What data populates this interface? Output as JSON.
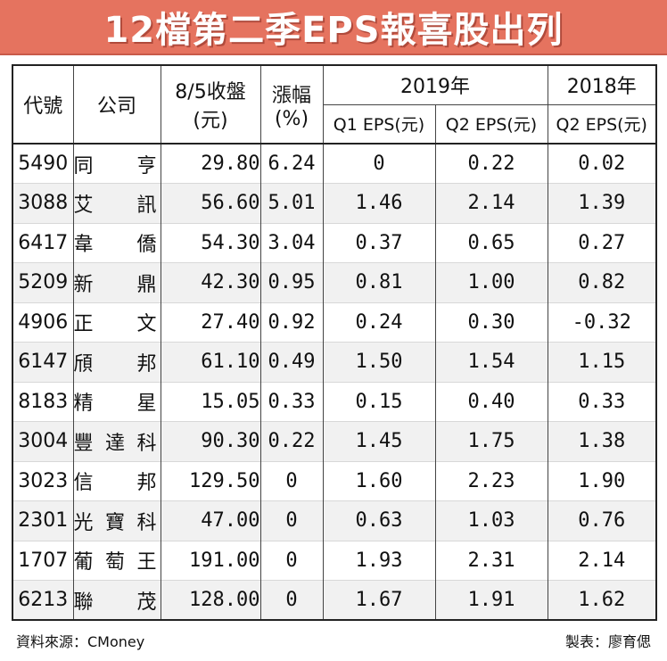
{
  "title": "12檔第二季EPS報喜股出列",
  "headers": {
    "code": "代號",
    "company": "公司",
    "price_line1": "8/5收盤",
    "price_line2": "(元)",
    "change_line1": "漲幅",
    "change_line2": "(%)",
    "year_2019": "2019年",
    "year_2018": "2018年",
    "q1_eps": "Q1 EPS(元)",
    "q2_eps_2019": "Q2 EPS(元)",
    "q2_eps_2018": "Q2 EPS(元)"
  },
  "chart_data": {
    "type": "table",
    "title": "12檔第二季EPS報喜股出列",
    "columns": [
      "代號",
      "公司",
      "8/5收盤(元)",
      "漲幅(%)",
      "2019年 Q1 EPS(元)",
      "2019年 Q2 EPS(元)",
      "2018年 Q2 EPS(元)"
    ],
    "rows": [
      [
        "5490",
        "同亨",
        "29.80",
        "6.24",
        "0",
        "0.22",
        "0.02"
      ],
      [
        "3088",
        "艾訊",
        "56.60",
        "5.01",
        "1.46",
        "2.14",
        "1.39"
      ],
      [
        "6417",
        "韋僑",
        "54.30",
        "3.04",
        "0.37",
        "0.65",
        "0.27"
      ],
      [
        "5209",
        "新鼎",
        "42.30",
        "0.95",
        "0.81",
        "1.00",
        "0.82"
      ],
      [
        "4906",
        "正文",
        "27.40",
        "0.92",
        "0.24",
        "0.30",
        "-0.32"
      ],
      [
        "6147",
        "頎邦",
        "61.10",
        "0.49",
        "1.50",
        "1.54",
        "1.15"
      ],
      [
        "8183",
        "精星",
        "15.05",
        "0.33",
        "0.15",
        "0.40",
        "0.33"
      ],
      [
        "3004",
        "豐達科",
        "90.30",
        "0.22",
        "1.45",
        "1.75",
        "1.38"
      ],
      [
        "3023",
        "信邦",
        "129.50",
        "0",
        "1.60",
        "2.23",
        "1.90"
      ],
      [
        "2301",
        "光寶科",
        "47.00",
        "0",
        "0.63",
        "1.03",
        "0.76"
      ],
      [
        "1707",
        "葡萄王",
        "191.00",
        "0",
        "1.93",
        "2.31",
        "2.14"
      ],
      [
        "6213",
        "聯茂",
        "128.00",
        "0",
        "1.67",
        "1.91",
        "1.62"
      ]
    ]
  },
  "footer": {
    "source": "資料來源：CMoney",
    "author": "製表：廖育偲"
  },
  "colors": {
    "title_bg": "#e5735f",
    "stripe": "#f1f1f1"
  }
}
